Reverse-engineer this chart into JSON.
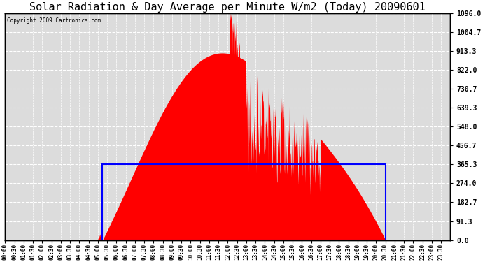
{
  "title": "Solar Radiation & Day Average per Minute W/m2 (Today) 20090601",
  "copyright": "Copyright 2009 Cartronics.com",
  "yticks": [
    0.0,
    91.3,
    182.7,
    274.0,
    365.3,
    456.7,
    548.0,
    639.3,
    730.7,
    822.0,
    913.3,
    1004.7,
    1096.0
  ],
  "ymax": 1096.0,
  "ymin": 0.0,
  "bg_color": "#ffffff",
  "plot_bg_color": "#dcdcdc",
  "fill_color": "#ff0000",
  "avg_line_color": "#0000ff",
  "grid_color": "#ffffff",
  "title_fontsize": 11,
  "sunrise_min": 315,
  "sunset_min": 1230,
  "avg_value": 365.3,
  "xtick_step_min": 30
}
